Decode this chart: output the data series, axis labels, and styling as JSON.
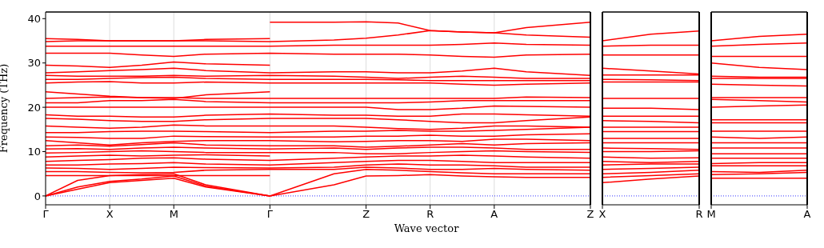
{
  "chart_data": [
    {
      "type": "line",
      "ylabel": "Frequency (THz)",
      "xlabel": "Wave vector",
      "color": "#ff0000",
      "ylim": [
        -2,
        41.5
      ],
      "categories": [
        "Γ",
        null,
        "X",
        null,
        "M",
        null,
        null,
        "Γ",
        null,
        null,
        "Z",
        null,
        "R",
        null,
        "A",
        null,
        null,
        "Z"
      ],
      "yticks": [
        0,
        10,
        20,
        30,
        40
      ],
      "grid": "x",
      "ref_lines": [
        {
          "axis": "y",
          "value": 0,
          "color": "#0000ff",
          "line_style": "dotted"
        }
      ],
      "series": [
        {
          "values": [
            0,
            1.5,
            3,
            3.5,
            4,
            2,
            null,
            0,
            null,
            2.5,
            4.5,
            4.6,
            4.8,
            4.5,
            4.3,
            4.2,
            null,
            4.2
          ]
        },
        {
          "values": [
            0,
            2,
            3.3,
            3.8,
            4.5,
            2.2,
            null,
            0,
            null,
            5,
            6,
            5.8,
            5.5,
            5.2,
            5,
            5,
            null,
            5
          ]
        },
        {
          "values": [
            0,
            3.5,
            4.6,
            4.8,
            5,
            2.5,
            null,
            0,
            null,
            null,
            null,
            null,
            null,
            null,
            null,
            null,
            null,
            null
          ]
        },
        {
          "values": [
            4.6,
            4.6,
            4.6,
            4.6,
            4.6,
            4.6,
            null,
            4.6,
            null,
            null,
            null,
            null,
            null,
            null,
            null,
            null,
            null,
            null
          ]
        },
        {
          "values": [
            5.5,
            5.5,
            5.3,
            5.2,
            5.3,
            5.8,
            null,
            6,
            null,
            6,
            6.5,
            6.3,
            6,
            6,
            6.2,
            6,
            null,
            5.8
          ]
        },
        {
          "values": [
            6.3,
            6.2,
            6,
            6.2,
            6.5,
            6.4,
            null,
            6.3,
            null,
            6.5,
            7,
            7.2,
            7,
            7,
            6.8,
            6.5,
            null,
            6.5
          ]
        },
        {
          "values": [
            7,
            7,
            7.2,
            7.3,
            7.5,
            7.2,
            null,
            7,
            null,
            7.5,
            7.8,
            8,
            8,
            7.8,
            7.5,
            7.5,
            null,
            7.5
          ]
        },
        {
          "values": [
            7.8,
            8,
            8.2,
            8.5,
            8.6,
            8.3,
            null,
            8,
            null,
            8.5,
            8.8,
            9,
            9,
            9.2,
            9,
            8.8,
            null,
            8.5
          ]
        },
        {
          "values": [
            8.8,
            9,
            9.2,
            9,
            9.2,
            9.3,
            null,
            9,
            null,
            null,
            null,
            null,
            null,
            null,
            null,
            null,
            null,
            null
          ]
        },
        {
          "values": [
            9.7,
            9.8,
            10,
            10.2,
            10,
            9.8,
            null,
            9.8,
            null,
            9.8,
            9.5,
            9.5,
            9.8,
            10,
            10.2,
            10,
            null,
            9.8
          ]
        },
        {
          "values": [
            10.6,
            10.7,
            10.5,
            10.8,
            11,
            10.8,
            null,
            10.6,
            null,
            10.8,
            10.5,
            10.8,
            11,
            11,
            10.8,
            10.5,
            null,
            10.5
          ]
        },
        {
          "values": [
            11.3,
            11.5,
            11.2,
            11.6,
            12,
            11.5,
            null,
            11.3,
            null,
            11.3,
            11,
            11.2,
            11.5,
            11.8,
            11.5,
            11.8,
            null,
            12
          ]
        },
        {
          "values": [
            12.5,
            12,
            11.5,
            12,
            12.3,
            12.5,
            null,
            12.5,
            null,
            12.2,
            12.3,
            12.5,
            12.5,
            12.3,
            12.8,
            12.8,
            null,
            12.5
          ]
        },
        {
          "values": [
            13.3,
            13.2,
            13,
            13,
            13.5,
            13.4,
            null,
            13.3,
            null,
            13.3,
            13.5,
            13.5,
            13.7,
            13.5,
            13.5,
            13.8,
            null,
            14
          ]
        },
        {
          "values": [
            14.3,
            14.3,
            14.5,
            14.6,
            14.6,
            14.5,
            null,
            14.3,
            null,
            14.6,
            14.6,
            14.8,
            14.6,
            14.6,
            14.8,
            15,
            null,
            15.5
          ]
        },
        {
          "values": [
            15.8,
            15.5,
            15.3,
            15.5,
            16,
            15.8,
            null,
            15.8,
            null,
            15.8,
            15.5,
            15.2,
            15,
            15.3,
            15.8,
            15.8,
            null,
            15.5
          ]
        },
        {
          "values": [
            17.5,
            17.3,
            17,
            16.8,
            16.8,
            17.2,
            null,
            17.5,
            null,
            17.5,
            17.5,
            17.2,
            16.8,
            16.5,
            16.5,
            17,
            null,
            17.8
          ]
        },
        {
          "values": [
            18.3,
            18,
            18,
            17.8,
            17.8,
            18.2,
            null,
            18.5,
            null,
            18.2,
            18.2,
            18,
            18,
            18.5,
            18.5,
            18.3,
            null,
            18
          ]
        },
        {
          "values": [
            20,
            20,
            20,
            20,
            20,
            20,
            null,
            20,
            null,
            20,
            20,
            19.5,
            19.5,
            19.8,
            20.3,
            20.2,
            null,
            20
          ]
        },
        {
          "values": [
            21,
            21,
            21.5,
            21.5,
            21.8,
            21.3,
            null,
            21,
            null,
            21,
            21,
            21,
            21.2,
            21.5,
            21.5,
            21.5,
            null,
            21.5
          ]
        },
        {
          "values": [
            22,
            22.2,
            22.3,
            22.2,
            22.2,
            22,
            null,
            22,
            null,
            22,
            22,
            22,
            22,
            22,
            22,
            22.3,
            null,
            22.2
          ]
        },
        {
          "values": [
            23.5,
            23,
            22.5,
            22.2,
            22,
            22.8,
            null,
            23.5,
            null,
            null,
            null,
            null,
            null,
            null,
            null,
            null,
            null,
            null
          ]
        },
        {
          "values": [
            25.5,
            25.7,
            25.8,
            25.5,
            25.5,
            25.7,
            null,
            25.5,
            null,
            25.5,
            25.5,
            25.5,
            25.5,
            25.2,
            25,
            25.2,
            null,
            25.5
          ]
        },
        {
          "values": [
            26.3,
            26.3,
            26.5,
            26.7,
            26.8,
            26.5,
            null,
            26.3,
            null,
            26.3,
            26.3,
            26.2,
            26,
            26,
            26,
            26,
            null,
            26
          ]
        },
        {
          "values": [
            27.2,
            27,
            27,
            27,
            27.2,
            27,
            null,
            27.2,
            null,
            27,
            26.8,
            26.5,
            26.8,
            27,
            26.8,
            26.5,
            null,
            26.5
          ]
        },
        {
          "values": [
            27.8,
            28,
            28.3,
            28.5,
            28.8,
            28.3,
            null,
            27.8,
            null,
            28,
            28,
            27.8,
            27.8,
            28.2,
            28.8,
            28,
            null,
            27.2
          ]
        },
        {
          "values": [
            29.5,
            29.3,
            29,
            29.5,
            30.2,
            29.8,
            null,
            29.5,
            null,
            null,
            null,
            null,
            null,
            null,
            null,
            null,
            null,
            null
          ]
        },
        {
          "values": [
            32.2,
            32.2,
            32.2,
            31.8,
            31.5,
            32,
            null,
            32.2,
            null,
            32,
            32,
            32,
            31.8,
            31.5,
            31.3,
            31.8,
            null,
            32
          ]
        },
        {
          "values": [
            33.8,
            33.8,
            33.8,
            33.8,
            33.8,
            33.8,
            null,
            33.8,
            null,
            34,
            34,
            34,
            34,
            34.2,
            34.5,
            34.2,
            null,
            34
          ]
        },
        {
          "values": [
            34.8,
            35,
            35,
            35,
            35,
            35,
            null,
            34.8,
            null,
            35.2,
            35.6,
            36.3,
            37.3,
            37,
            36.8,
            36.3,
            null,
            35.8
          ]
        },
        {
          "values": [
            35.5,
            35.3,
            35,
            35,
            35,
            35.3,
            null,
            35.5,
            null,
            null,
            null,
            null,
            null,
            null,
            null,
            null,
            null,
            null
          ]
        },
        {
          "values": [
            null,
            null,
            null,
            null,
            null,
            null,
            null,
            39.2,
            null,
            39.2,
            39.3,
            39,
            37.3,
            37,
            36.8,
            38,
            null,
            39.2
          ]
        }
      ]
    },
    {
      "type": "line",
      "color": "#ff0000",
      "categories": [
        "X",
        null,
        "R"
      ],
      "ylim": [
        -2,
        41.5
      ],
      "yticks": [
        0,
        10,
        20,
        30,
        40
      ],
      "tick_labels": "x",
      "ref_lines": [
        {
          "axis": "y",
          "value": 0,
          "color": "#0000ff",
          "line_style": "dotted"
        }
      ],
      "series": [
        {
          "values": [
            3,
            3.8,
            4.5
          ]
        },
        {
          "values": [
            4.2,
            4.6,
            5
          ]
        },
        {
          "values": [
            5,
            5.3,
            5.8
          ]
        },
        {
          "values": [
            6,
            6.2,
            6.5
          ]
        },
        {
          "values": [
            7,
            7.2,
            7.2
          ]
        },
        {
          "values": [
            7.8,
            7.5,
            7.8
          ]
        },
        {
          "values": [
            8.8,
            8.5,
            8.6
          ]
        },
        {
          "values": [
            10,
            10,
            10.2
          ]
        },
        {
          "values": [
            10.8,
            10.7,
            10.5
          ]
        },
        {
          "values": [
            12,
            12,
            12
          ]
        },
        {
          "values": [
            13,
            13,
            13
          ]
        },
        {
          "values": [
            14.5,
            14.5,
            14.5
          ]
        },
        {
          "values": [
            15.5,
            15.5,
            15.5
          ]
        },
        {
          "values": [
            17,
            16.8,
            16.5
          ]
        },
        {
          "values": [
            18,
            18,
            18
          ]
        },
        {
          "values": [
            19.8,
            19.8,
            19.5
          ]
        },
        {
          "values": [
            22,
            22,
            22
          ]
        },
        {
          "values": [
            25.7,
            25.7,
            25.7
          ]
        },
        {
          "values": [
            26.3,
            26.2,
            26
          ]
        },
        {
          "values": [
            27.3,
            27.3,
            27.3
          ]
        },
        {
          "values": [
            28.8,
            28.2,
            27.5
          ]
        },
        {
          "values": [
            31.8,
            31.8,
            31.8
          ]
        },
        {
          "values": [
            33.8,
            34,
            34
          ]
        },
        {
          "values": [
            35,
            36.5,
            37.2
          ]
        }
      ]
    },
    {
      "type": "line",
      "color": "#ff0000",
      "categories": [
        "M",
        null,
        "A"
      ],
      "ylim": [
        -2,
        41.5
      ],
      "yticks": [
        0,
        10,
        20,
        30,
        40
      ],
      "tick_labels": "x",
      "ref_lines": [
        {
          "axis": "y",
          "value": 0,
          "color": "#0000ff",
          "line_style": "dotted"
        }
      ],
      "series": [
        {
          "values": [
            4,
            4,
            4
          ]
        },
        {
          "values": [
            4.8,
            5,
            5.3
          ]
        },
        {
          "values": [
            5.5,
            5.3,
            5.8
          ]
        },
        {
          "values": [
            6.8,
            6.8,
            6.8
          ]
        },
        {
          "values": [
            7.3,
            7.5,
            7.5
          ]
        },
        {
          "values": [
            8.5,
            8.5,
            8.5
          ]
        },
        {
          "values": [
            9.5,
            9.5,
            9.5
          ]
        },
        {
          "values": [
            10.8,
            10.8,
            10.8
          ]
        },
        {
          "values": [
            12,
            12,
            12
          ]
        },
        {
          "values": [
            13.3,
            13,
            13.3
          ]
        },
        {
          "values": [
            14.6,
            14.6,
            14.6
          ]
        },
        {
          "values": [
            16.5,
            16.5,
            16.5
          ]
        },
        {
          "values": [
            17.2,
            17.2,
            17.2
          ]
        },
        {
          "values": [
            20,
            20.3,
            20.5
          ]
        },
        {
          "values": [
            21.8,
            21.5,
            21.2
          ]
        },
        {
          "values": [
            22.2,
            22.2,
            22.2
          ]
        },
        {
          "values": [
            25.2,
            25,
            24.8
          ]
        },
        {
          "values": [
            26.5,
            26.5,
            26.5
          ]
        },
        {
          "values": [
            27,
            26.8,
            26.8
          ]
        },
        {
          "values": [
            30,
            29,
            28.5
          ]
        },
        {
          "values": [
            31.5,
            31.5,
            31.5
          ]
        },
        {
          "values": [
            33.8,
            34.2,
            34.5
          ]
        },
        {
          "values": [
            35,
            36,
            36.5
          ]
        }
      ]
    }
  ]
}
